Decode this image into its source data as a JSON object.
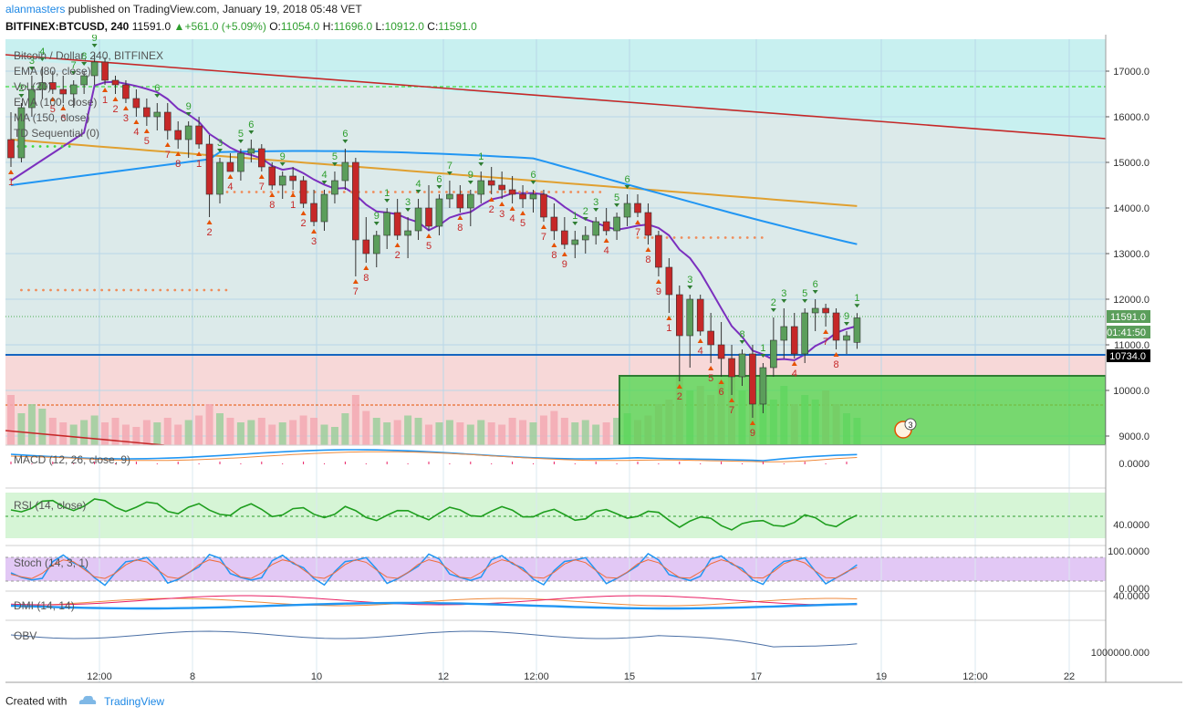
{
  "header": {
    "user": "alanmasters",
    "published_text": "published on TradingView.com, January 19, 2018 05:48 VET",
    "symbol": "BITFINEX:BTCUSD, 240",
    "last": "11591.0",
    "change": "+561.0 (+5.09%)",
    "open_label": "O:",
    "open": "11054.0",
    "high_label": "H:",
    "high": "11696.0",
    "low_label": "L:",
    "low": "10912.0",
    "close_label": "C:",
    "close": "11591.0"
  },
  "legend": {
    "title": "Bitcoin / Dollar, 240, BITFINEX",
    "ema80": "EMA (80, close)",
    "vol": "Vol (20)",
    "ema100": "EMA (100, close)",
    "ma150": "MA (150, close)",
    "td": "TD Sequential (0)"
  },
  "price_axis": {
    "ticks": [
      "17000.0",
      "16000.0",
      "15000.0",
      "14000.0",
      "13000.0",
      "12000.0",
      "11000.0",
      "10000.0",
      "9000.0"
    ],
    "last_badge": "11591.0",
    "countdown_badge": "01:41:50",
    "level_badge": "10734.0"
  },
  "time_axis": {
    "ticks": [
      "12:00",
      "8",
      "10",
      "12",
      "12:00",
      "15",
      "17",
      "19",
      "12:00",
      "22"
    ]
  },
  "panes": {
    "macd": {
      "label": "MACD (12, 26, close, 9)",
      "tick": "0.0000"
    },
    "rsi": {
      "label": "RSI (14, close)",
      "tick": "40.0000"
    },
    "stoch": {
      "label": "Stoch (14, 3, 1)",
      "tick_top": "100.0000",
      "tick_bottom": "0.0000"
    },
    "dmi": {
      "label": "DMI (14, 14)",
      "tick": "40.0000"
    },
    "obv": {
      "label": "OBV",
      "tick": "1000000.000"
    }
  },
  "event_badge": "3",
  "footer": {
    "created_with": "Created with",
    "brand": "TradingView"
  },
  "colors": {
    "up": "#5b9e5b",
    "down": "#c62828",
    "ema80": "#7b2fbe",
    "ema100": "#2196f3",
    "ma150": "#e0a030",
    "trendline": "#c62828",
    "support_box": "#4cd84c",
    "upper_zone": "#c8f0f0",
    "lower_zone": "#f7d8d8"
  },
  "chart_data": {
    "type": "candlestick",
    "ylim": [
      8800,
      17700
    ],
    "ohlc": [
      [
        15500,
        16100,
        14900,
        15100
      ],
      [
        15100,
        16300,
        15000,
        16200
      ],
      [
        16200,
        16900,
        16000,
        16600
      ],
      [
        16600,
        17100,
        16400,
        16750
      ],
      [
        16750,
        17000,
        16500,
        16600
      ],
      [
        16600,
        16900,
        16300,
        16500
      ],
      [
        16500,
        16800,
        16200,
        16700
      ],
      [
        16700,
        17000,
        16500,
        16900
      ],
      [
        16900,
        17400,
        16700,
        17200
      ],
      [
        17200,
        17300,
        16700,
        16800
      ],
      [
        16800,
        16900,
        16500,
        16700
      ],
      [
        16700,
        16800,
        16300,
        16400
      ],
      [
        16400,
        16600,
        16000,
        16200
      ],
      [
        16200,
        16400,
        15800,
        16000
      ],
      [
        16000,
        16300,
        15700,
        16100
      ],
      [
        16100,
        16300,
        15500,
        15700
      ],
      [
        15700,
        15900,
        15300,
        15500
      ],
      [
        15500,
        15900,
        15100,
        15800
      ],
      [
        15800,
        16000,
        15300,
        15400
      ],
      [
        15400,
        15600,
        13800,
        14300
      ],
      [
        14300,
        15100,
        14100,
        15000
      ],
      [
        15000,
        15200,
        14800,
        14800
      ],
      [
        14800,
        15300,
        14600,
        15200
      ],
      [
        15200,
        15500,
        15000,
        15300
      ],
      [
        15300,
        15400,
        14800,
        14900
      ],
      [
        14900,
        15000,
        14400,
        14500
      ],
      [
        14500,
        14800,
        14200,
        14700
      ],
      [
        14700,
        14900,
        14400,
        14600
      ],
      [
        14600,
        14700,
        14000,
        14100
      ],
      [
        14100,
        14400,
        13600,
        13700
      ],
      [
        13700,
        14400,
        13500,
        14300
      ],
      [
        14300,
        14800,
        14100,
        14600
      ],
      [
        14600,
        15300,
        14400,
        15000
      ],
      [
        15000,
        15100,
        12500,
        13300
      ],
      [
        13300,
        13800,
        12800,
        13000
      ],
      [
        13000,
        13500,
        12700,
        13400
      ],
      [
        13400,
        14000,
        13100,
        13900
      ],
      [
        13900,
        14200,
        13300,
        13400
      ],
      [
        13400,
        13800,
        12900,
        13500
      ],
      [
        13500,
        14200,
        13300,
        14000
      ],
      [
        14000,
        14500,
        13500,
        13600
      ],
      [
        13600,
        14300,
        13400,
        14200
      ],
      [
        14200,
        14600,
        14000,
        14300
      ],
      [
        14300,
        14500,
        13900,
        14000
      ],
      [
        14000,
        14400,
        13600,
        14300
      ],
      [
        14300,
        14800,
        14100,
        14600
      ],
      [
        14600,
        14900,
        14300,
        14500
      ],
      [
        14500,
        14800,
        14200,
        14400
      ],
      [
        14400,
        14700,
        14100,
        14300
      ],
      [
        14300,
        14500,
        14000,
        14200
      ],
      [
        14200,
        14400,
        13900,
        14300
      ],
      [
        14300,
        14400,
        13700,
        13800
      ],
      [
        13800,
        14100,
        13300,
        13500
      ],
      [
        13500,
        13800,
        13100,
        13200
      ],
      [
        13200,
        13500,
        12900,
        13300
      ],
      [
        13300,
        13600,
        13000,
        13400
      ],
      [
        13400,
        13800,
        13200,
        13700
      ],
      [
        13700,
        14000,
        13400,
        13500
      ],
      [
        13500,
        13900,
        13300,
        13800
      ],
      [
        13800,
        14300,
        13600,
        14100
      ],
      [
        14100,
        14300,
        13800,
        13900
      ],
      [
        13900,
        14100,
        13200,
        13400
      ],
      [
        13400,
        13500,
        12500,
        12700
      ],
      [
        12700,
        12900,
        11700,
        12100
      ],
      [
        12100,
        12300,
        10200,
        11200
      ],
      [
        11200,
        12100,
        10500,
        12000
      ],
      [
        12000,
        12100,
        11200,
        11300
      ],
      [
        11300,
        11700,
        10600,
        11000
      ],
      [
        11000,
        11500,
        10300,
        10700
      ],
      [
        10700,
        11000,
        9900,
        10300
      ],
      [
        10300,
        10900,
        10100,
        10800
      ],
      [
        10800,
        11000,
        9400,
        9700
      ],
      [
        9700,
        10600,
        9500,
        10500
      ],
      [
        10500,
        11600,
        10300,
        11100
      ],
      [
        11100,
        11800,
        10700,
        11400
      ],
      [
        11400,
        11700,
        10700,
        10800
      ],
      [
        10800,
        11800,
        10600,
        11700
      ],
      [
        11700,
        12000,
        11300,
        11800
      ],
      [
        11800,
        11900,
        11400,
        11700
      ],
      [
        11700,
        11800,
        10900,
        11100
      ],
      [
        11100,
        11300,
        10800,
        11200
      ],
      [
        11054,
        11696,
        10912,
        11591
      ]
    ],
    "volume": [
      22,
      14,
      18,
      16,
      12,
      10,
      9,
      11,
      13,
      10,
      12,
      9,
      8,
      11,
      10,
      12,
      9,
      11,
      13,
      18,
      14,
      12,
      10,
      11,
      12,
      9,
      10,
      11,
      13,
      12,
      9,
      8,
      14,
      22,
      15,
      12,
      10,
      11,
      13,
      12,
      9,
      10,
      11,
      10,
      9,
      11,
      10,
      9,
      12,
      11,
      10,
      13,
      15,
      12,
      10,
      11,
      9,
      10,
      12,
      14,
      11,
      13,
      18,
      20,
      30,
      24,
      26,
      22,
      28,
      30,
      24,
      26,
      22,
      20,
      26,
      18,
      22,
      20,
      24,
      18,
      14,
      12
    ],
    "levels": {
      "support": 10734,
      "upper_dotted": 16700,
      "box_top": 10300
    }
  }
}
